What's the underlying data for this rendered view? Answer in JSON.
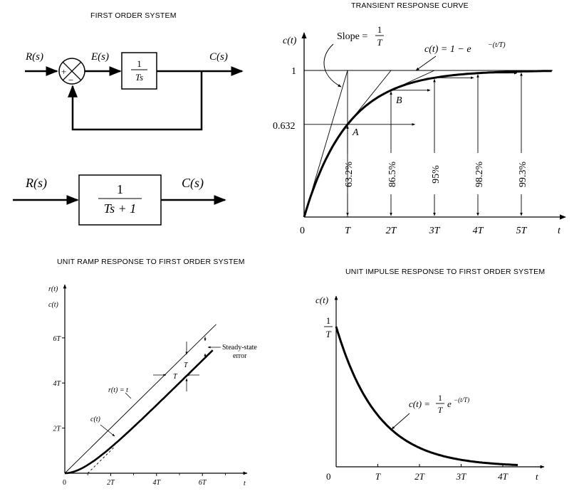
{
  "titles": {
    "block": "FIRST ORDER SYSTEM",
    "transient": "TRANSIENT RESPONSE CURVE",
    "ramp": "UNIT RAMP RESPONSE TO FIRST ORDER SYSTEM",
    "impulse": "UNIT IMPULSE RESPONSE TO FIRST ORDER SYSTEM"
  },
  "block_diagram": {
    "input": "R(s)",
    "error": "E(s)",
    "output": "C(s)",
    "plus": "+",
    "minus": "−",
    "forward_num": "1",
    "forward_den": "Ts",
    "closed_input": "R(s)",
    "closed_output": "C(s)",
    "closed_num": "1",
    "closed_den": "Ts + 1"
  },
  "transient": {
    "ylabel": "c(t)",
    "xlabel": "t",
    "y_one": "1",
    "y_632": "0.632",
    "origin": "0",
    "x_ticks": [
      "T",
      "2T",
      "3T",
      "4T",
      "5T"
    ],
    "percents": [
      "63.2%",
      "86.5%",
      "95%",
      "98.2%",
      "99.3%"
    ],
    "slope_text": "Slope =",
    "slope_num": "1",
    "slope_den": "T",
    "eq_text": "c(t) = 1 − e",
    "eq_exp": "−(t/T)",
    "point_a": "A",
    "point_b": "B"
  },
  "ramp": {
    "ylabel_r": "r(t)",
    "ylabel_c": "c(t)",
    "xlabel": "t",
    "origin": "0",
    "y_ticks": [
      "2T",
      "4T",
      "6T"
    ],
    "x_ticks": [
      "2T",
      "4T",
      "6T"
    ],
    "r_label": "r(t) = t",
    "c_label": "c(t)",
    "sse_line1": "Steady-state",
    "sse_line2": "error",
    "T_h": "T",
    "T_v": "T"
  },
  "impulse": {
    "ylabel": "c(t)",
    "xlabel": "t",
    "origin": "0",
    "y_num": "1",
    "y_den": "T",
    "x_ticks": [
      "T",
      "2T",
      "3T",
      "4T"
    ],
    "eq_left": "c(t) =",
    "eq_num": "1",
    "eq_den": "T",
    "eq_exp_base": "e",
    "eq_exp": "−(t/T)"
  },
  "chart_data": [
    {
      "type": "line",
      "title": "TRANSIENT RESPONSE CURVE",
      "xlabel": "t",
      "ylabel": "c(t)",
      "x": [
        0,
        1,
        2,
        3,
        4,
        5
      ],
      "x_tick_labels": [
        "0",
        "T",
        "2T",
        "3T",
        "4T",
        "5T"
      ],
      "series": [
        {
          "values": [
            0,
            0.632,
            0.865,
            0.95,
            0.982,
            0.993
          ]
        }
      ],
      "ylim": [
        0,
        1
      ]
    },
    {
      "type": "line",
      "title": "UNIT RAMP RESPONSE TO FIRST ORDER SYSTEM",
      "xlabel": "t",
      "x_tick_labels": [
        "0",
        "2T",
        "4T",
        "6T"
      ],
      "series": [
        {
          "name": "r(t) = t",
          "x": [
            0,
            6.6
          ],
          "values": [
            0,
            6.6
          ]
        },
        {
          "name": "c(t)",
          "x": [
            0,
            2,
            4,
            6.6
          ],
          "values": [
            0,
            1.14,
            3.02,
            5.6
          ]
        }
      ]
    },
    {
      "type": "line",
      "title": "UNIT IMPULSE RESPONSE TO FIRST ORDER SYSTEM",
      "xlabel": "t",
      "ylabel": "c(t)",
      "x": [
        0,
        1,
        2,
        3,
        4
      ],
      "x_tick_labels": [
        "0",
        "T",
        "2T",
        "3T",
        "4T"
      ],
      "series": [
        {
          "name": "c(t)",
          "values": [
            1,
            0.368,
            0.135,
            0.05,
            0.018
          ]
        }
      ]
    }
  ]
}
